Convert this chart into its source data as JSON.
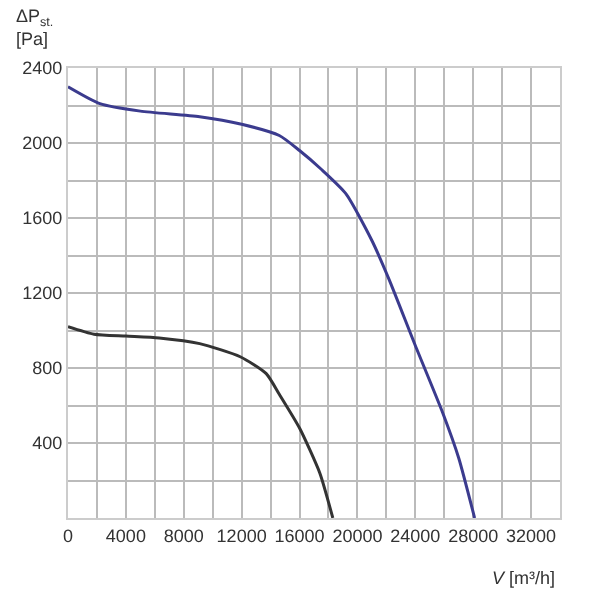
{
  "chart_data": {
    "type": "line",
    "ylabel": "ΔP$_{st.}$ [Pa]",
    "xlabel": "V [m³/h]",
    "xlim": [
      0,
      34000
    ],
    "ylim": [
      0,
      2400
    ],
    "xticks": [
      0,
      4000,
      8000,
      12000,
      16000,
      20000,
      24000,
      28000,
      32000
    ],
    "yticks": [
      {
        "value": 0,
        "label": null
      },
      400,
      800,
      1200,
      1600,
      2000,
      2400
    ],
    "grid": true,
    "marker": "none",
    "line_style": "solid",
    "series": [
      {
        "color": "#3b3b8e",
        "x": [
          0,
          2200,
          5000,
          9100,
          12000,
          14600,
          16000,
          17500,
          19200,
          21000,
          22200,
          24000,
          25900,
          27000,
          28100
        ],
        "values": [
          2300,
          2210,
          2170,
          2140,
          2100,
          2040,
          1960,
          1860,
          1730,
          1480,
          1270,
          920,
          560,
          320,
          0
        ]
      },
      {
        "color": "#333333",
        "x": [
          0,
          1800,
          4000,
          6300,
          9100,
          11900,
          13700,
          14600,
          16000,
          17400,
          18300
        ],
        "values": [
          1020,
          980,
          970,
          960,
          930,
          860,
          770,
          660,
          480,
          240,
          0
        ]
      }
    ]
  }
}
